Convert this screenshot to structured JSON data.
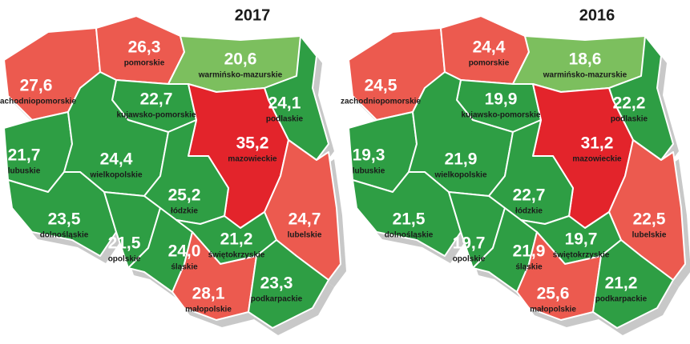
{
  "maps": [
    {
      "year": "2017",
      "regions": [
        {
          "name": "zachodniopomorskie",
          "value": "27,6",
          "color": "#ec5a4f"
        },
        {
          "name": "pomorskie",
          "value": "26,3",
          "color": "#ec5a4f"
        },
        {
          "name": "warmińsko-mazurskie",
          "value": "20,6",
          "color": "#7cbf5e"
        },
        {
          "name": "podlaskie",
          "value": "24,1",
          "color": "#2e9e44"
        },
        {
          "name": "kujawsko-pomorskie",
          "value": "22,7",
          "color": "#2e9e44"
        },
        {
          "name": "lubuskie",
          "value": "21,7",
          "color": "#2e9e44"
        },
        {
          "name": "wielkopolskie",
          "value": "24,4",
          "color": "#2e9e44"
        },
        {
          "name": "mazowieckie",
          "value": "35,2",
          "color": "#e3242b"
        },
        {
          "name": "łódzkie",
          "value": "25,2",
          "color": "#2e9e44"
        },
        {
          "name": "lubelskie",
          "value": "24,7",
          "color": "#ec5a4f"
        },
        {
          "name": "dolnośląskie",
          "value": "23,5",
          "color": "#2e9e44"
        },
        {
          "name": "opolskie",
          "value": "21,5",
          "color": "#2e9e44"
        },
        {
          "name": "śląskie",
          "value": "24,0",
          "color": "#2e9e44"
        },
        {
          "name": "świętokrzyskie",
          "value": "21,2",
          "color": "#2e9e44"
        },
        {
          "name": "małopolskie",
          "value": "28,1",
          "color": "#ec5a4f"
        },
        {
          "name": "podkarpackie",
          "value": "23,3",
          "color": "#2e9e44"
        }
      ]
    },
    {
      "year": "2016",
      "regions": [
        {
          "name": "zachodniopomorskie",
          "value": "24,5",
          "color": "#ec5a4f"
        },
        {
          "name": "pomorskie",
          "value": "24,4",
          "color": "#ec5a4f"
        },
        {
          "name": "warmińsko-mazurskie",
          "value": "18,6",
          "color": "#7cbf5e"
        },
        {
          "name": "podlaskie",
          "value": "22,2",
          "color": "#2e9e44"
        },
        {
          "name": "kujawsko-pomorskie",
          "value": "19,9",
          "color": "#2e9e44"
        },
        {
          "name": "lubuskie",
          "value": "19,3",
          "color": "#2e9e44"
        },
        {
          "name": "wielkopolskie",
          "value": "21,9",
          "color": "#2e9e44"
        },
        {
          "name": "mazowieckie",
          "value": "31,2",
          "color": "#e3242b"
        },
        {
          "name": "łódzkie",
          "value": "22,7",
          "color": "#2e9e44"
        },
        {
          "name": "lubelskie",
          "value": "22,5",
          "color": "#ec5a4f"
        },
        {
          "name": "dolnośląskie",
          "value": "21,5",
          "color": "#2e9e44"
        },
        {
          "name": "opolskie",
          "value": "19,7",
          "color": "#2e9e44"
        },
        {
          "name": "śląskie",
          "value": "21,9",
          "color": "#2e9e44"
        },
        {
          "name": "świętokrzyskie",
          "value": "19,7",
          "color": "#2e9e44"
        },
        {
          "name": "małopolskie",
          "value": "25,6",
          "color": "#ec5a4f"
        },
        {
          "name": "podkarpackie",
          "value": "21,2",
          "color": "#2e9e44"
        }
      ]
    }
  ]
}
